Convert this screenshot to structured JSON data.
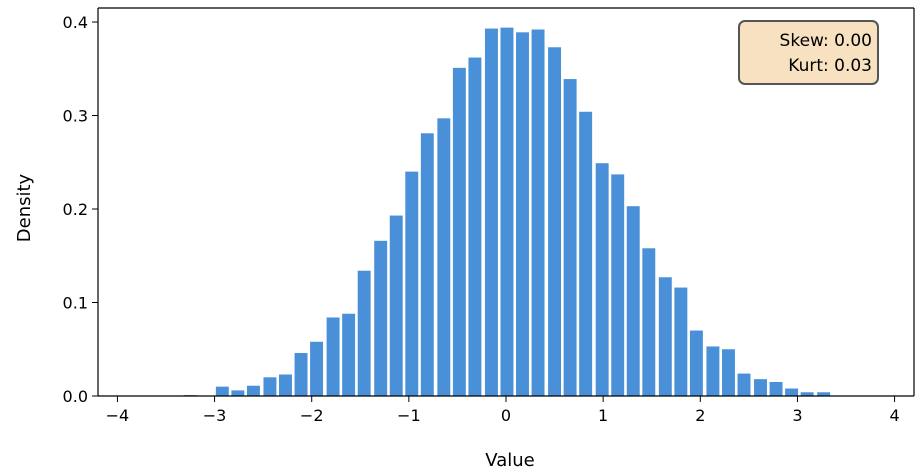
{
  "chart_data": {
    "type": "bar",
    "xlabel": "Value",
    "ylabel": "Density",
    "xlim": [
      -4.2,
      4.2
    ],
    "ylim": [
      0,
      0.415
    ],
    "xticks": [
      -4,
      -3,
      -2,
      -1,
      0,
      1,
      2,
      3,
      4
    ],
    "xtick_labels": [
      "−4",
      "−3",
      "−2",
      "−1",
      "0",
      "1",
      "2",
      "3",
      "4"
    ],
    "yticks": [
      0.0,
      0.1,
      0.2,
      0.3,
      0.4
    ],
    "ytick_labels": [
      "0.0",
      "0.1",
      "0.2",
      "0.3",
      "0.4"
    ],
    "bin_width": 0.1625,
    "bar_color": "#4a90d9",
    "bins": [
      {
        "x": -3.25,
        "y": 0.001
      },
      {
        "x": -3.09,
        "y": 0.0
      },
      {
        "x": -2.92,
        "y": 0.01
      },
      {
        "x": -2.76,
        "y": 0.006
      },
      {
        "x": -2.6,
        "y": 0.011
      },
      {
        "x": -2.43,
        "y": 0.02
      },
      {
        "x": -2.27,
        "y": 0.023
      },
      {
        "x": -2.11,
        "y": 0.046
      },
      {
        "x": -1.95,
        "y": 0.058
      },
      {
        "x": -1.78,
        "y": 0.084
      },
      {
        "x": -1.62,
        "y": 0.088
      },
      {
        "x": -1.46,
        "y": 0.134
      },
      {
        "x": -1.29,
        "y": 0.166
      },
      {
        "x": -1.13,
        "y": 0.193
      },
      {
        "x": -0.97,
        "y": 0.24
      },
      {
        "x": -0.81,
        "y": 0.281
      },
      {
        "x": -0.64,
        "y": 0.297
      },
      {
        "x": -0.48,
        "y": 0.351
      },
      {
        "x": -0.32,
        "y": 0.362
      },
      {
        "x": -0.15,
        "y": 0.393
      },
      {
        "x": 0.01,
        "y": 0.394
      },
      {
        "x": 0.17,
        "y": 0.389
      },
      {
        "x": 0.33,
        "y": 0.392
      },
      {
        "x": 0.5,
        "y": 0.373
      },
      {
        "x": 0.66,
        "y": 0.339
      },
      {
        "x": 0.82,
        "y": 0.304
      },
      {
        "x": 0.99,
        "y": 0.249
      },
      {
        "x": 1.15,
        "y": 0.237
      },
      {
        "x": 1.31,
        "y": 0.203
      },
      {
        "x": 1.47,
        "y": 0.158
      },
      {
        "x": 1.64,
        "y": 0.127
      },
      {
        "x": 1.8,
        "y": 0.116
      },
      {
        "x": 1.96,
        "y": 0.07
      },
      {
        "x": 2.13,
        "y": 0.053
      },
      {
        "x": 2.29,
        "y": 0.05
      },
      {
        "x": 2.45,
        "y": 0.024
      },
      {
        "x": 2.62,
        "y": 0.018
      },
      {
        "x": 2.78,
        "y": 0.015
      },
      {
        "x": 2.94,
        "y": 0.008
      },
      {
        "x": 3.1,
        "y": 0.004
      },
      {
        "x": 3.27,
        "y": 0.004
      }
    ],
    "annotation": {
      "lines": [
        "Skew: 0.00",
        "Kurt: 0.03"
      ],
      "position": "top-right",
      "background": "#f7e1c0",
      "border": "#555555"
    }
  }
}
